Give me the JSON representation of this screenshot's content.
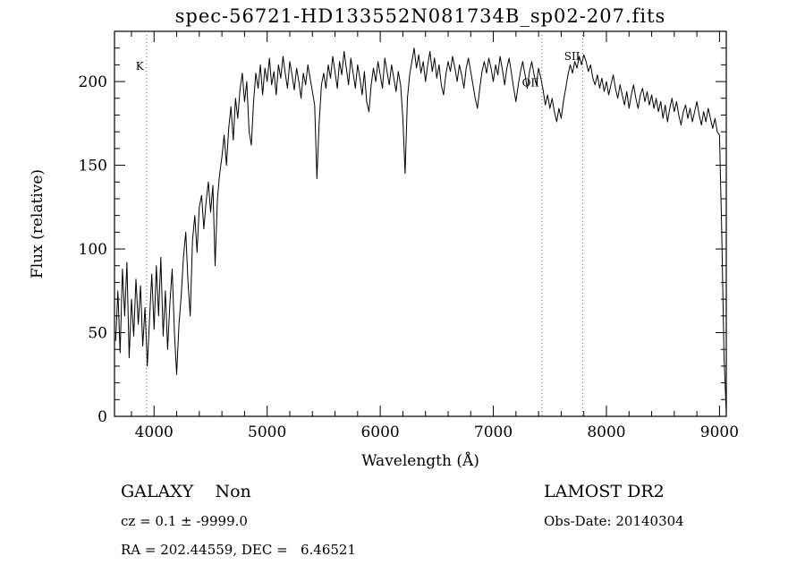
{
  "chart_data": {
    "type": "line",
    "title": "spec-56721-HD133552N081734B_sp02-207.fits",
    "xlabel": "Wavelength (Å)",
    "ylabel": "Flux (relative)",
    "xlim": [
      3650,
      9060
    ],
    "ylim": [
      0,
      230
    ],
    "x_major_ticks": [
      4000,
      5000,
      6000,
      7000,
      8000,
      9000
    ],
    "x_minor_step": 200,
    "y_major_ticks": [
      0,
      50,
      100,
      150,
      200
    ],
    "y_minor_step": 10,
    "grid": false,
    "legend": "none",
    "line_color": "#000000",
    "x_start": 3660,
    "x_step": 20,
    "flux": [
      45,
      75,
      38,
      88,
      60,
      92,
      35,
      70,
      48,
      82,
      55,
      78,
      42,
      65,
      30,
      58,
      85,
      52,
      90,
      60,
      95,
      48,
      75,
      40,
      68,
      88,
      50,
      25,
      55,
      72,
      95,
      110,
      80,
      60,
      105,
      120,
      98,
      125,
      132,
      112,
      128,
      140,
      122,
      138,
      90,
      130,
      145,
      155,
      168,
      150,
      172,
      185,
      165,
      190,
      178,
      195,
      205,
      188,
      200,
      170,
      162,
      188,
      205,
      196,
      210,
      192,
      208,
      200,
      214,
      198,
      206,
      192,
      210,
      202,
      215,
      205,
      196,
      212,
      204,
      195,
      208,
      200,
      190,
      205,
      198,
      210,
      202,
      194,
      186,
      142,
      175,
      198,
      205,
      196,
      210,
      202,
      215,
      206,
      196,
      212,
      204,
      218,
      208,
      198,
      214,
      205,
      196,
      210,
      202,
      192,
      206,
      188,
      182,
      198,
      208,
      200,
      212,
      204,
      196,
      214,
      206,
      198,
      210,
      202,
      194,
      206,
      198,
      178,
      145,
      190,
      204,
      212,
      220,
      208,
      216,
      205,
      212,
      200,
      210,
      218,
      206,
      214,
      202,
      210,
      198,
      192,
      204,
      212,
      206,
      215,
      208,
      200,
      210,
      204,
      196,
      208,
      214,
      206,
      198,
      190,
      184,
      196,
      206,
      212,
      205,
      214,
      208,
      200,
      210,
      204,
      215,
      207,
      198,
      208,
      214,
      205,
      196,
      188,
      198,
      206,
      212,
      204,
      196,
      206,
      212,
      204,
      198,
      208,
      202,
      195,
      186,
      192,
      184,
      190,
      182,
      176,
      184,
      178,
      188,
      196,
      204,
      210,
      205,
      212,
      208,
      215,
      210,
      216,
      212,
      206,
      210,
      202,
      198,
      204,
      196,
      202,
      194,
      200,
      192,
      198,
      204,
      196,
      190,
      198,
      192,
      186,
      194,
      184,
      192,
      198,
      190,
      184,
      192,
      196,
      188,
      194,
      186,
      192,
      184,
      190,
      182,
      188,
      178,
      186,
      176,
      184,
      190,
      182,
      188,
      180,
      174,
      182,
      186,
      178,
      184,
      176,
      182,
      188,
      180,
      174,
      182,
      176,
      184,
      178,
      172,
      178,
      170,
      168,
      110,
      35,
      2
    ],
    "line_markers": [
      {
        "label": "K",
        "wavelength": 3933,
        "label_flux": 207
      },
      {
        "label": "OII",
        "wavelength": 7430,
        "label_flux": 197
      },
      {
        "label": "SII",
        "wavelength": 7790,
        "label_flux": 213
      }
    ]
  },
  "annotations": {
    "class_label": "GALAXY    Non",
    "survey_label": "LAMOST DR2",
    "cz_label": "cz = 0.1 ± -9999.0",
    "obsdate_label": "Obs-Date: 20140304",
    "radec_label": "RA = 202.44559, DEC =   6.46521"
  }
}
